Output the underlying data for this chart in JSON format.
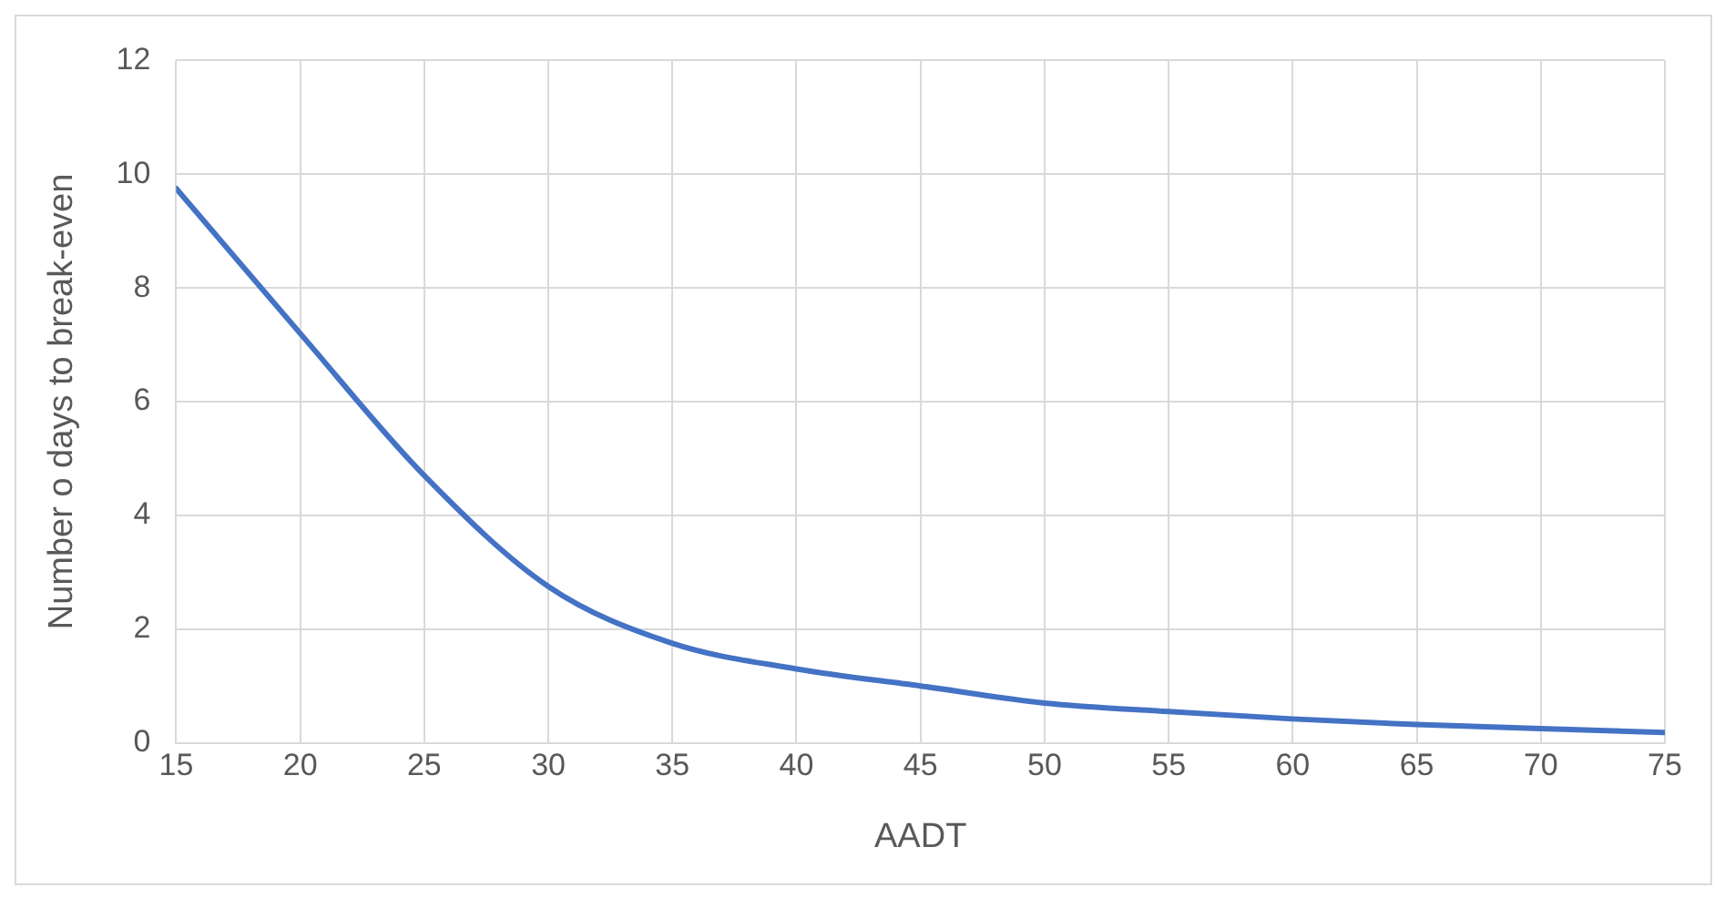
{
  "chart_data": {
    "type": "line",
    "xlabel": "AADT",
    "ylabel": "Number o days to break-even",
    "x": [
      15,
      20,
      25,
      30,
      35,
      40,
      45,
      50,
      55,
      60,
      65,
      70,
      75
    ],
    "series": [
      {
        "color": "#4472c4",
        "values": [
          9.75,
          7.2,
          4.7,
          2.75,
          1.75,
          1.3,
          1.0,
          0.7,
          0.55,
          0.42,
          0.32,
          0.25,
          0.18
        ]
      }
    ],
    "xlim": [
      15,
      75
    ],
    "xticks": [
      15,
      20,
      25,
      30,
      35,
      40,
      45,
      50,
      55,
      60,
      65,
      70,
      75
    ],
    "ylim": [
      0,
      12
    ],
    "yticks": [
      0,
      2,
      4,
      6,
      8,
      10,
      12
    ],
    "grid": true,
    "marker": "none",
    "line_style": "solid",
    "legend": false
  }
}
